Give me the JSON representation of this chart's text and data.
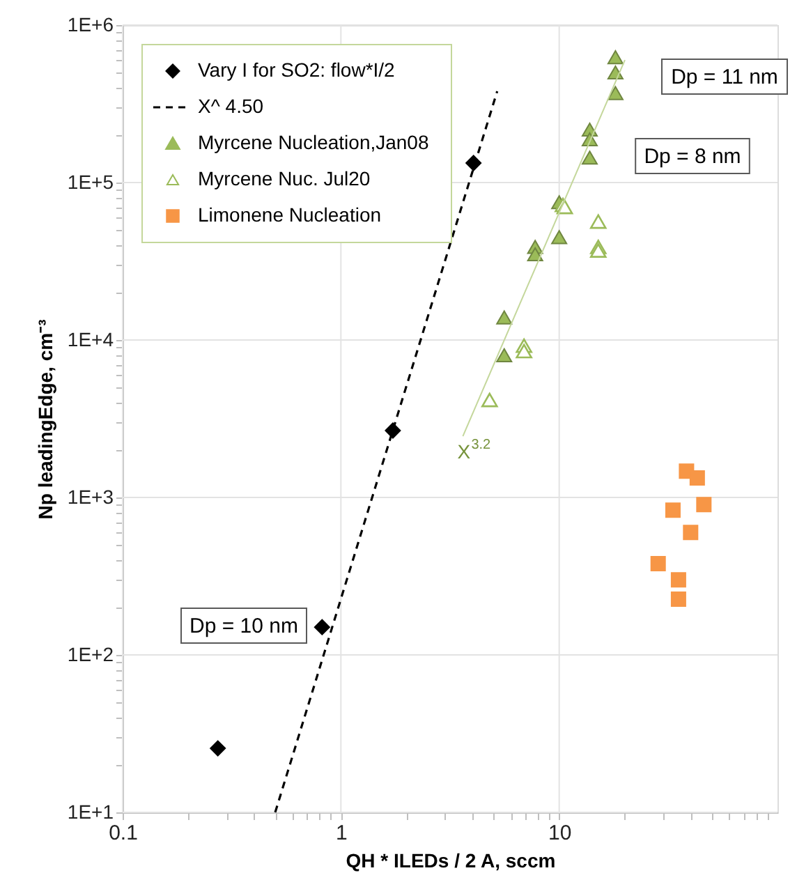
{
  "chart_data": {
    "type": "scatter",
    "xlabel": "QH * ILEDs / 2 A,  sccm",
    "ylabel": "Np leadingEdge, cm⁻³",
    "log": "xy",
    "xlim": [
      0.1,
      100
    ],
    "ylim": [
      10,
      1000000
    ],
    "xticks": [
      0.1,
      {
        "value": 0.2,
        "label": null
      },
      {
        "value": 0.3,
        "label": null
      },
      {
        "value": 0.4,
        "label": null
      },
      {
        "value": 0.5,
        "label": null
      },
      {
        "value": 0.6,
        "label": null
      },
      {
        "value": 0.7,
        "label": null
      },
      {
        "value": 0.8,
        "label": null
      },
      {
        "value": 0.9,
        "label": null
      },
      1,
      {
        "value": 2,
        "label": null
      },
      {
        "value": 3,
        "label": null
      },
      {
        "value": 4,
        "label": null
      },
      {
        "value": 5,
        "label": null
      },
      {
        "value": 6,
        "label": null
      },
      {
        "value": 7,
        "label": null
      },
      {
        "value": 8,
        "label": null
      },
      {
        "value": 9,
        "label": null
      },
      10,
      {
        "value": 20,
        "label": null
      },
      {
        "value": 30,
        "label": null
      },
      {
        "value": 40,
        "label": null
      },
      {
        "value": 50,
        "label": null
      },
      {
        "value": 60,
        "label": null
      },
      {
        "value": 70,
        "label": null
      },
      {
        "value": 80,
        "label": null
      },
      {
        "value": 90,
        "label": null
      }
    ],
    "yticks": [
      {
        "value": 10,
        "label": "1E+1"
      },
      {
        "value": 20,
        "label": null
      },
      {
        "value": 30,
        "label": null
      },
      {
        "value": 40,
        "label": null
      },
      {
        "value": 50,
        "label": null
      },
      {
        "value": 60,
        "label": null
      },
      {
        "value": 70,
        "label": null
      },
      {
        "value": 80,
        "label": null
      },
      {
        "value": 90,
        "label": null
      },
      {
        "value": 100,
        "label": "1E+2"
      },
      {
        "value": 200,
        "label": null
      },
      {
        "value": 300,
        "label": null
      },
      {
        "value": 400,
        "label": null
      },
      {
        "value": 500,
        "label": null
      },
      {
        "value": 600,
        "label": null
      },
      {
        "value": 700,
        "label": null
      },
      {
        "value": 800,
        "label": null
      },
      {
        "value": 900,
        "label": null
      },
      {
        "value": 1000,
        "label": "1E+3"
      },
      {
        "value": 2000,
        "label": null
      },
      {
        "value": 3000,
        "label": null
      },
      {
        "value": 4000,
        "label": null
      },
      {
        "value": 5000,
        "label": null
      },
      {
        "value": 6000,
        "label": null
      },
      {
        "value": 7000,
        "label": null
      },
      {
        "value": 8000,
        "label": null
      },
      {
        "value": 9000,
        "label": null
      },
      {
        "value": 10000,
        "label": "1E+4"
      },
      {
        "value": 20000,
        "label": null
      },
      {
        "value": 30000,
        "label": null
      },
      {
        "value": 40000,
        "label": null
      },
      {
        "value": 50000,
        "label": null
      },
      {
        "value": 60000,
        "label": null
      },
      {
        "value": 70000,
        "label": null
      },
      {
        "value": 80000,
        "label": null
      },
      {
        "value": 90000,
        "label": null
      },
      {
        "value": 100000,
        "label": "1E+5"
      },
      {
        "value": 200000,
        "label": null
      },
      {
        "value": 300000,
        "label": null
      },
      {
        "value": 400000,
        "label": null
      },
      {
        "value": 500000,
        "label": null
      },
      {
        "value": 600000,
        "label": null
      },
      {
        "value": 700000,
        "label": null
      },
      {
        "value": 800000,
        "label": null
      },
      {
        "value": 900000,
        "label": null
      },
      {
        "value": 1000000,
        "label": "1E+6"
      }
    ],
    "grid": true,
    "legend": "top left",
    "series": [
      {
        "name": "Vary I for SO2: flow*I/2",
        "marker": "diamond",
        "color": "#000000",
        "x": [
          4.05,
          1.73,
          0.82,
          0.273
        ],
        "values": [
          133000,
          2660,
          150,
          25.5
        ]
      },
      {
        "name": "X^ 4.50",
        "type": "line",
        "marker": "none",
        "line_style": "dashed",
        "color": "#000000",
        "x": [
          0.5,
          5.2
        ],
        "values": [
          10,
          380000
        ]
      },
      {
        "name": "Myrcene Nucleation,Jan08",
        "marker": "triangle",
        "color": "#9bbb59",
        "x": [
          18.1,
          18.1,
          18.1,
          13.8,
          13.8,
          13.8,
          10,
          10,
          7.76,
          7.76,
          5.6,
          5.6
        ],
        "values": [
          625000,
          500000,
          370000,
          217000,
          188000,
          144000,
          75000,
          45000,
          39000,
          35000,
          13900,
          8000
        ]
      },
      {
        "name": "Myrcene Nuc. Jul20",
        "marker": "triangle",
        "color": "#9bbb59",
        "x": [
          10.4,
          10.6,
          15.1,
          15.1,
          15.1,
          6.9,
          6.9,
          4.8
        ],
        "values": [
          72000,
          70000,
          56500,
          39000,
          37000,
          9200,
          8500,
          4160
        ]
      },
      {
        "name": "Limonene Nucleation",
        "marker": "square",
        "color": "#f79646",
        "x": [
          38.3,
          42.9,
          46,
          33.2,
          40,
          28.4,
          35.2,
          35.2
        ],
        "values": [
          1470,
          1330,
          900,
          830,
          600,
          380,
          300,
          226
        ]
      },
      {
        "type": "line",
        "marker": "none",
        "line_style": "solid",
        "color": "#c4d79b",
        "x": [
          3.62,
          20.0
        ],
        "values": [
          2450,
          600000
        ]
      }
    ],
    "annotations": [
      "Dp = 11 nm",
      "Dp = 8 nm",
      "Dp = 10 nm",
      {
        "text": "X$^{3.2}$",
        "x": 3.62,
        "y": 2450
      }
    ]
  }
}
